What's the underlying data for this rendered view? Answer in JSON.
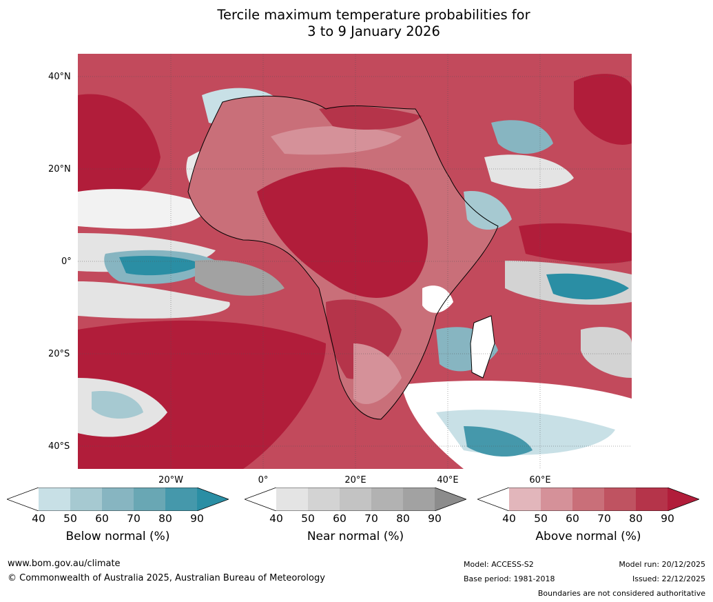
{
  "title": {
    "line1": "Tercile maximum temperature probabilities for",
    "line2": "3 to 9 January 2026"
  },
  "map": {
    "lat_labels": [
      "40°N",
      "20°N",
      "0°",
      "20°S",
      "40°S"
    ],
    "lon_labels": [
      "20°W",
      "0°",
      "20°E",
      "40°E",
      "60°E"
    ]
  },
  "colorbars": [
    {
      "label": "Below normal (%)",
      "ticks": [
        "40",
        "50",
        "60",
        "70",
        "80",
        "90"
      ],
      "colors": [
        "#ffffff",
        "#c8e0e6",
        "#a6c9d1",
        "#87b5c1",
        "#69a7b4",
        "#4598ab",
        "#2a8ea4"
      ]
    },
    {
      "label": "Near normal (%)",
      "ticks": [
        "40",
        "50",
        "60",
        "70",
        "80",
        "90"
      ],
      "colors": [
        "#ffffff",
        "#e4e4e4",
        "#d3d3d3",
        "#c3c3c3",
        "#b2b2b2",
        "#a2a2a2",
        "#8c8c8c"
      ]
    },
    {
      "label": "Above normal (%)",
      "ticks": [
        "40",
        "50",
        "60",
        "70",
        "80",
        "90"
      ],
      "colors": [
        "#ffffff",
        "#e2b6bb",
        "#d59199",
        "#c96f79",
        "#bf5361",
        "#b5344a",
        "#b11d3a"
      ]
    }
  ],
  "footer": {
    "website": "www.bom.gov.au/climate",
    "copyright": "© Commonwealth of Australia 2025, Australian Bureau of Meteorology",
    "model": "Model: ACCESS-S2",
    "base_period": "Base period: 1981-2018",
    "model_run": "Model run: 20/12/2025",
    "issued": "Issued: 22/12/2025",
    "disclaimer": "Boundaries are not considered authoritative"
  }
}
